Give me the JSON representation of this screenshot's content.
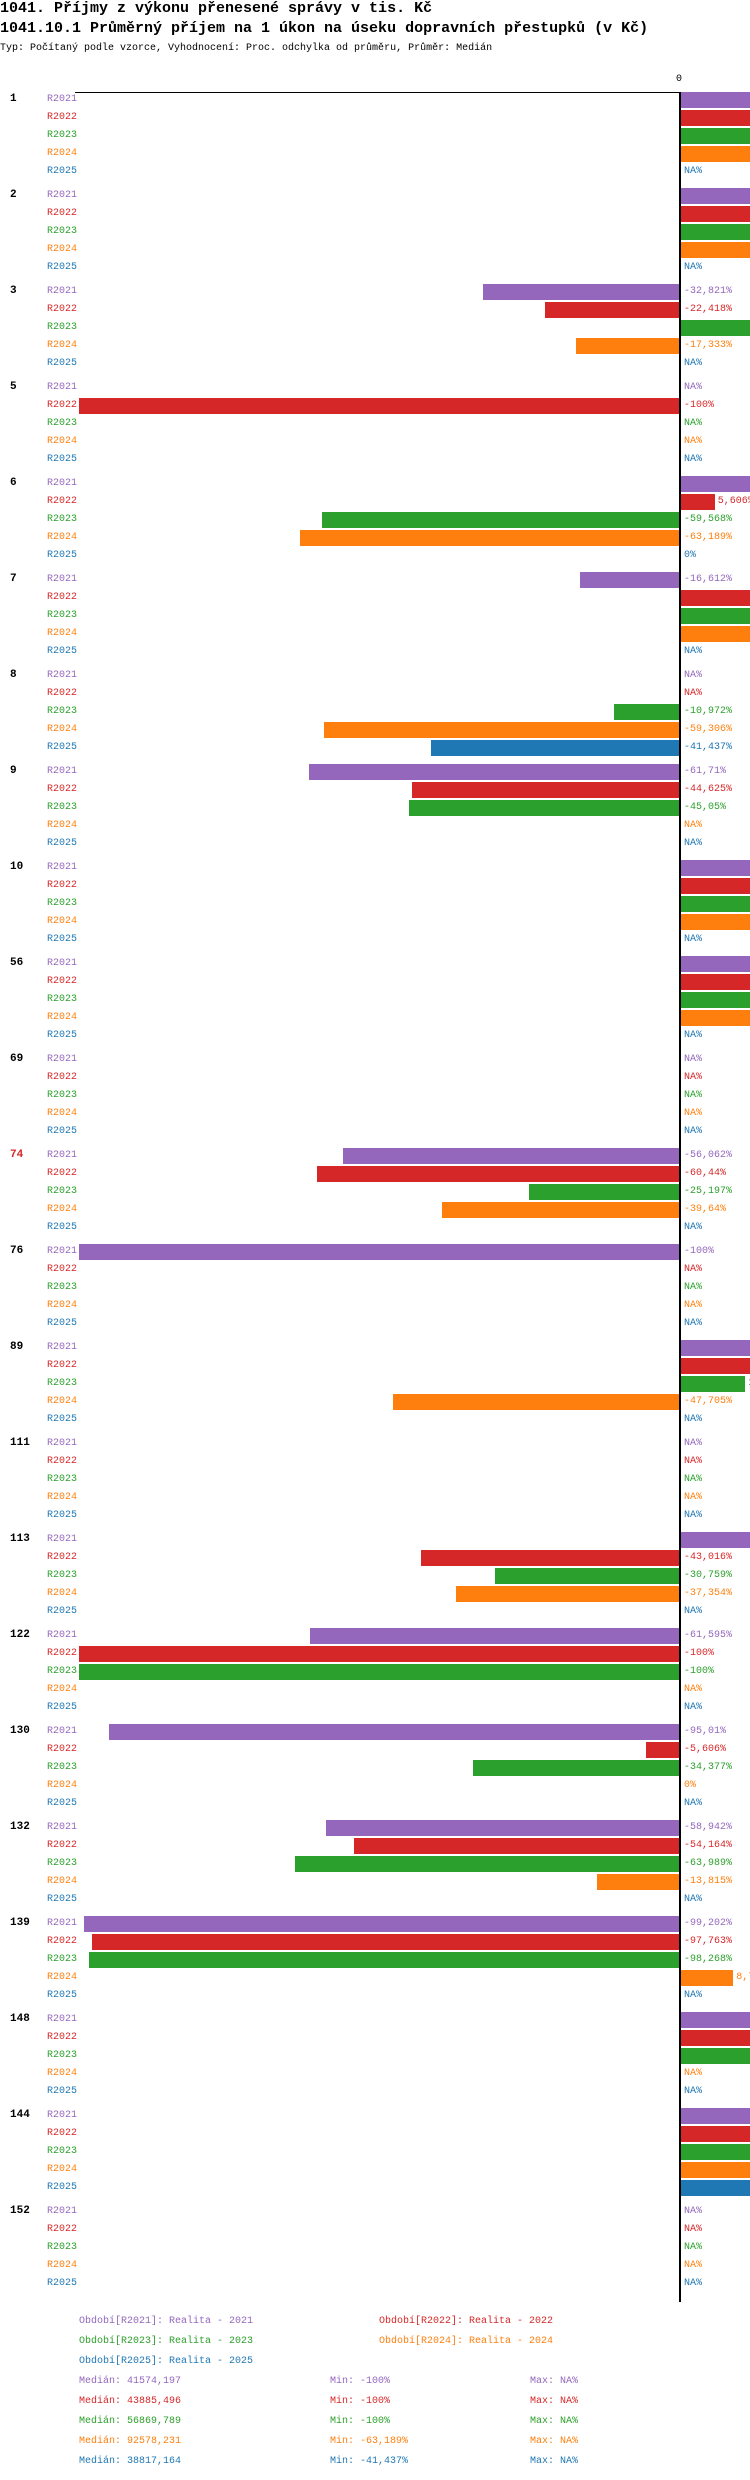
{
  "header": {
    "title": "1041. Příjmy z výkonu přenesené správy v tis. Kč",
    "subtitle": "1041.10.1 Průměrný příjem na 1 úkon na úseku dopravních přestupků (v Kč)",
    "meta": "Typ: Počítaný podle vzorce, Vyhodnocení: Proc. odchylka od průměru, Průměr: Medián"
  },
  "chart_data": {
    "type": "bar",
    "orientation": "horizontal",
    "title": "1041.10.1 Průměrný příjem na 1 úkon na úseku dopravních přestupků (v Kč)",
    "xlabel": "",
    "ylabel": "",
    "x_tick_labels": [
      "0"
    ],
    "xlim": [
      -100,
      12
    ],
    "unit": "%",
    "note": "values in % deviation from median; null = NA%; \">\" = positive bar exceeding visible range (label not visible)",
    "series": [
      {
        "name": "R2021",
        "color": "#9467bd"
      },
      {
        "name": "R2022",
        "color": "#d62728"
      },
      {
        "name": "R2023",
        "color": "#2ca02c"
      },
      {
        "name": "R2024",
        "color": "#ff7f0e"
      },
      {
        "name": "R2025",
        "color": "#1f77b4"
      }
    ],
    "groups": [
      {
        "label": "1",
        "values": [
          ">",
          ">",
          ">",
          ">",
          null
        ]
      },
      {
        "label": "2",
        "values": [
          ">",
          ">",
          ">",
          ">",
          null
        ]
      },
      {
        "label": "3",
        "values": [
          -32.821,
          -22.418,
          ">",
          -17.333,
          null
        ]
      },
      {
        "label": "5",
        "values": [
          null,
          -100,
          null,
          null,
          null
        ]
      },
      {
        "label": "6",
        "values": [
          ">",
          5.606,
          -59.568,
          -63.189,
          0
        ]
      },
      {
        "label": "7",
        "values": [
          -16.612,
          ">",
          ">",
          ">",
          null
        ]
      },
      {
        "label": "8",
        "values": [
          null,
          null,
          -10.972,
          -59.306,
          -41.437
        ]
      },
      {
        "label": "9",
        "values": [
          -61.71,
          -44.625,
          -45.05,
          null,
          null
        ]
      },
      {
        "label": "10",
        "values": [
          ">",
          ">",
          ">",
          ">",
          null
        ]
      },
      {
        "label": "56",
        "values": [
          ">",
          ">",
          ">",
          ">",
          null
        ]
      },
      {
        "label": "69",
        "values": [
          null,
          null,
          null,
          null,
          null
        ]
      },
      {
        "label": "74",
        "values": [
          -56.062,
          -60.44,
          -25.197,
          -39.64,
          null
        ],
        "highlight": true
      },
      {
        "label": "76",
        "values": [
          -100,
          null,
          null,
          null,
          null
        ]
      },
      {
        "label": "89",
        "values": [
          ">",
          ">",
          10.7,
          -47.705,
          null
        ]
      },
      {
        "label": "111",
        "values": [
          null,
          null,
          null,
          null,
          null
        ]
      },
      {
        "label": "113",
        "values": [
          ">",
          -43.016,
          -30.759,
          -37.354,
          null
        ]
      },
      {
        "label": "122",
        "values": [
          -61.595,
          -100,
          -100,
          null,
          null
        ]
      },
      {
        "label": "130",
        "values": [
          -95.01,
          -5.606,
          -34.377,
          0,
          null
        ]
      },
      {
        "label": "132",
        "values": [
          -58.942,
          -54.164,
          -63.989,
          -13.815,
          null
        ]
      },
      {
        "label": "139",
        "values": [
          -99.202,
          -97.763,
          -98.268,
          8.7,
          null
        ]
      },
      {
        "label": "148",
        "values": [
          ">",
          ">",
          ">",
          null,
          null
        ]
      },
      {
        "label": "144",
        "values": [
          ">",
          ">",
          ">",
          ">",
          ">"
        ]
      },
      {
        "label": "152",
        "values": [
          null,
          null,
          null,
          null,
          null
        ]
      }
    ]
  },
  "legend": {
    "periods": [
      "Období[R2021]: Realita - 2021",
      "Období[R2022]: Realita - 2022",
      "Období[R2023]: Realita - 2023",
      "Období[R2024]: Realita - 2024",
      "Období[R2025]: Realita - 2025"
    ],
    "stats": [
      {
        "median": "Medián: 41574,197",
        "min": "Min: -100%",
        "max": "Max: NA%"
      },
      {
        "median": "Medián: 43885,496",
        "min": "Min: -100%",
        "max": "Max: NA%"
      },
      {
        "median": "Medián: 56869,789",
        "min": "Min: -100%",
        "max": "Max: NA%"
      },
      {
        "median": "Medián: 92578,231",
        "min": "Min: -63,189%",
        "max": "Max: NA%"
      },
      {
        "median": "Medián: 38817,164",
        "min": "Min: -41,437%",
        "max": "Max: NA%"
      }
    ]
  }
}
